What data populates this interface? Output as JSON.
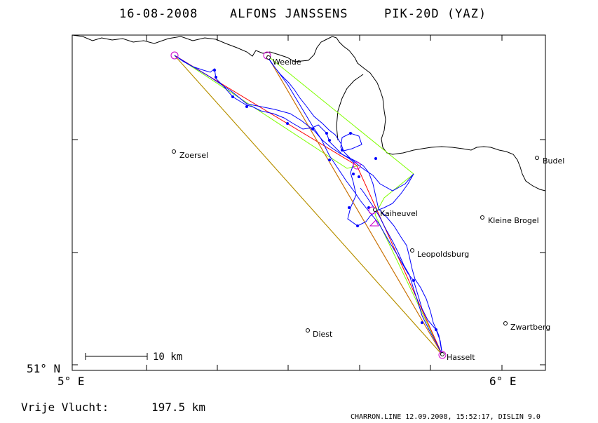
{
  "header": {
    "date": "16-08-2008",
    "pilot": "ALFONS JANSSENS",
    "glider": "PIK-20D (YAZ)"
  },
  "axes": {
    "lat_label": "51° N",
    "lon_labels": [
      "5° E",
      "6° E"
    ]
  },
  "towns": [
    {
      "name": "Weelde"
    },
    {
      "name": "Zoersel"
    },
    {
      "name": "Budel"
    },
    {
      "name": "Kaiheuvel"
    },
    {
      "name": "Kleine Brogel"
    },
    {
      "name": "Leopoldsburg"
    },
    {
      "name": "Diest"
    },
    {
      "name": "Zwartberg"
    },
    {
      "name": "Hasselt"
    }
  ],
  "scale": {
    "label": "10 km"
  },
  "summary": {
    "label": "Vrije Vlucht:",
    "value": "197.5 km"
  },
  "footer": {
    "text": "CHARRON.LINE 12.09.2008, 15:52:17, DISLIN 9.0"
  },
  "colors": {
    "track": "#0000ff",
    "legs_red": "#ff0000",
    "legs_green": "#80ff00",
    "legs_orange": "#c08000",
    "turnpoints": "#cc00cc",
    "border": "#000000"
  }
}
